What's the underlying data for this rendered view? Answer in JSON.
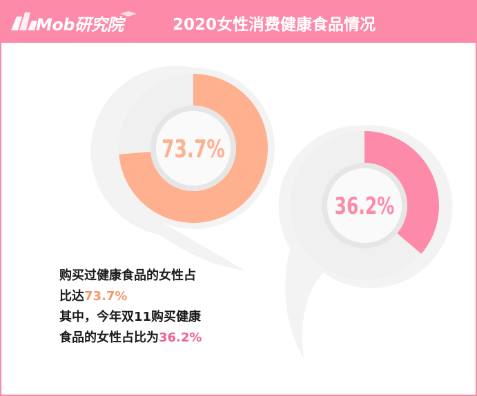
{
  "header": {
    "logo_text": "Mob研究院",
    "title": "2020女性消费健康食品情况"
  },
  "colors": {
    "header": "#fd8aa9",
    "border": "#f58aa8",
    "chart1": "#ffb08e",
    "chart2": "#fd8aa9",
    "track": "#f0f0f0",
    "highlight1": "#f5996b",
    "highlight2": "#f06292"
  },
  "chart_data": [
    {
      "type": "pie",
      "values": [
        73.7,
        26.3
      ],
      "label": "73.7%",
      "unit": "%"
    },
    {
      "type": "pie",
      "values": [
        36.2,
        63.8
      ],
      "label": "36.2%",
      "unit": "%"
    }
  ],
  "caption": {
    "line1": "购买过健康食品的女性占",
    "line2_prefix": "比达",
    "line2_value": "73.7%",
    "line3": "其中，今年双11购买健康",
    "line4_prefix": "食品的女性占比为",
    "line4_value": "36.2%"
  }
}
